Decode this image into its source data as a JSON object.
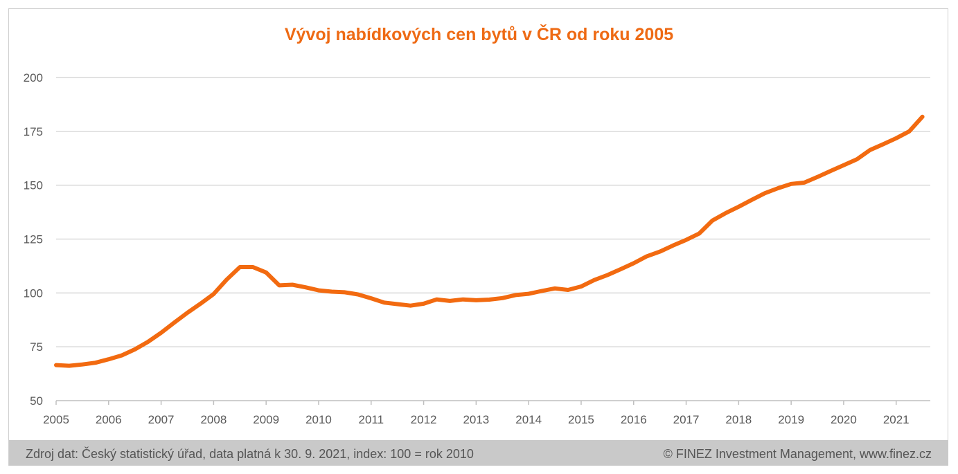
{
  "chart_data": {
    "type": "line",
    "title": "Vývoj nabídkových cen bytů v ČR od roku 2005",
    "xlabel": "",
    "ylabel": "",
    "ylim": [
      50,
      200
    ],
    "yticks": [
      "50",
      "75",
      "100",
      "125",
      "150",
      "175",
      "200"
    ],
    "xlim": [
      2005,
      2021.65
    ],
    "xticks": [
      "2005",
      "2006",
      "2007",
      "2008",
      "2009",
      "2010",
      "2011",
      "2012",
      "2013",
      "2014",
      "2015",
      "2016",
      "2017",
      "2018",
      "2019",
      "2020",
      "2021"
    ],
    "grid": true,
    "legend": "none",
    "line_color": "#f26a10",
    "series": [
      {
        "x": [
          2005.0,
          2005.25,
          2005.5,
          2005.75,
          2006.0,
          2006.25,
          2006.5,
          2006.75,
          2007.0,
          2007.25,
          2007.5,
          2007.75,
          2008.0,
          2008.25,
          2008.5,
          2008.75,
          2009.0,
          2009.25,
          2009.5,
          2009.75,
          2010.0,
          2010.25,
          2010.5,
          2010.75,
          2011.0,
          2011.25,
          2011.5,
          2011.75,
          2012.0,
          2012.25,
          2012.5,
          2012.75,
          2013.0,
          2013.25,
          2013.5,
          2013.75,
          2014.0,
          2014.25,
          2014.5,
          2014.75,
          2015.0,
          2015.25,
          2015.5,
          2015.75,
          2016.0,
          2016.25,
          2016.5,
          2016.75,
          2017.0,
          2017.25,
          2017.5,
          2017.75,
          2018.0,
          2018.25,
          2018.5,
          2018.75,
          2019.0,
          2019.25,
          2019.5,
          2019.75,
          2020.0,
          2020.25,
          2020.5,
          2020.75,
          2021.0,
          2021.25,
          2021.5
        ],
        "values": [
          66.5,
          66.2,
          66.8,
          67.6,
          69.2,
          71.0,
          73.8,
          77.3,
          81.5,
          86.2,
          90.8,
          95.0,
          99.5,
          106.2,
          112.0,
          112.0,
          109.5,
          103.5,
          103.8,
          102.6,
          101.2,
          100.6,
          100.3,
          99.3,
          97.5,
          95.5,
          94.8,
          94.1,
          95.0,
          97.0,
          96.3,
          97.0,
          96.6,
          96.9,
          97.6,
          99.0,
          99.6,
          100.9,
          102.1,
          101.4,
          103.0,
          106.0,
          108.3,
          111.0,
          113.8,
          117.0,
          119.2,
          122.0,
          124.6,
          127.6,
          133.6,
          137.0,
          140.0,
          143.2,
          146.3,
          148.6,
          150.6,
          151.2,
          153.8,
          156.6,
          159.3,
          162.0,
          166.3,
          169.0,
          171.8,
          175.0,
          181.8
        ]
      }
    ]
  },
  "footer": {
    "source": "Zdroj dat: Český statistický úřad, data platná k 30. 9. 2021, index: 100 = rok 2010",
    "copyright": "© FINEZ Investment Management, www.finez.cz"
  }
}
